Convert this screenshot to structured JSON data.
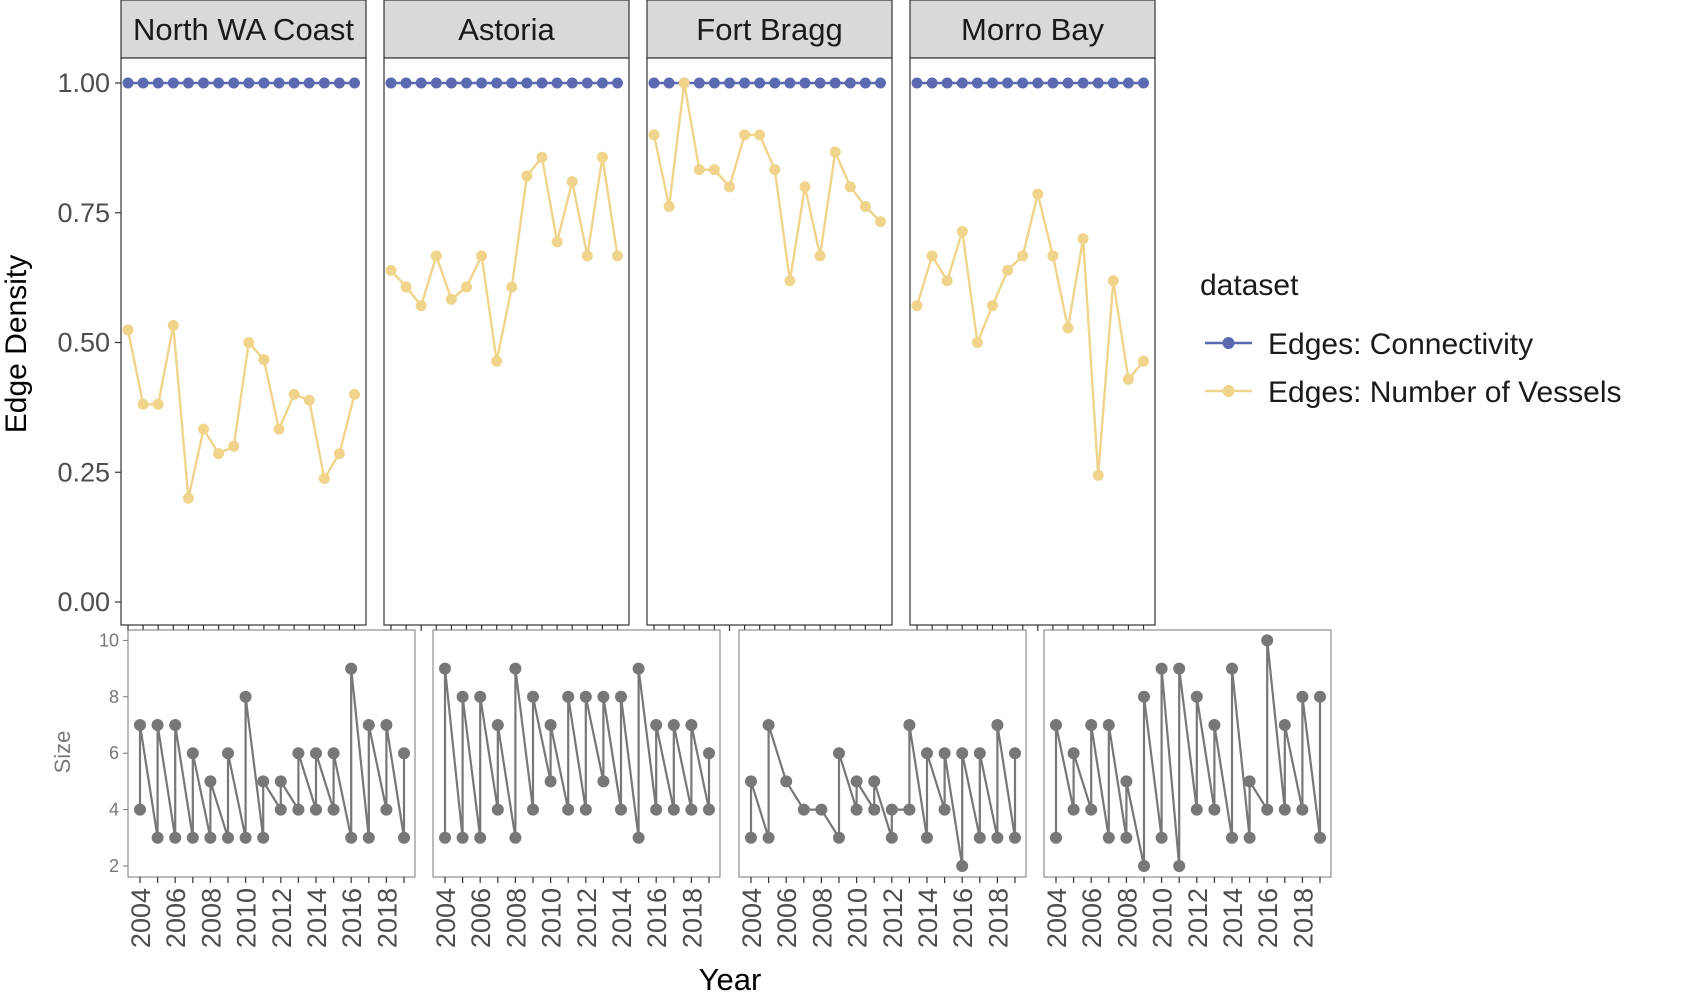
{
  "chart_data": [
    {
      "type": "line",
      "panel_group": "top",
      "ylabel": "Edge Density",
      "ylim": [
        0,
        1.0
      ],
      "yticks": [
        "0.00",
        "0.25",
        "0.50",
        "0.75",
        "1.00"
      ],
      "facets": [
        "North WA Coast",
        "Astoria",
        "Fort Bragg",
        "Morro Bay"
      ],
      "x": [
        2004,
        2005,
        2006,
        2007,
        2008,
        2009,
        2010,
        2011,
        2012,
        2013,
        2014,
        2015,
        2016,
        2017,
        2018,
        2019
      ],
      "legend": {
        "title": "dataset",
        "position": "right",
        "entries": [
          "Edges: Connectivity",
          "Edges: Number of Vessels"
        ]
      },
      "grid": false,
      "series": [
        {
          "name": "Edges: Connectivity",
          "color": "#5b69b0",
          "values": {
            "North WA Coast": [
              1,
              1,
              1,
              1,
              1,
              1,
              1,
              1,
              1,
              1,
              1,
              1,
              1,
              1,
              1,
              1
            ],
            "Astoria": [
              1,
              1,
              1,
              1,
              1,
              1,
              1,
              1,
              1,
              1,
              1,
              1,
              1,
              1,
              1,
              1
            ],
            "Fort Bragg": [
              1,
              1,
              1,
              1,
              1,
              1,
              1,
              1,
              1,
              1,
              1,
              1,
              1,
              1,
              1,
              1
            ],
            "Morro Bay": [
              1,
              1,
              1,
              1,
              1,
              1,
              1,
              1,
              1,
              1,
              1,
              1,
              1,
              1,
              1,
              1
            ]
          }
        },
        {
          "name": "Edges: Number of Vessels",
          "color": "#f1d48b",
          "values": {
            "North WA Coast": [
              0.524,
              0.381,
              0.381,
              0.533,
              0.2,
              0.333,
              0.286,
              0.3,
              0.5,
              0.467,
              0.333,
              0.4,
              0.389,
              0.238,
              0.286,
              0.4
            ],
            "Astoria": [
              0.639,
              0.607,
              0.571,
              0.667,
              0.583,
              0.607,
              0.667,
              0.464,
              0.607,
              0.821,
              0.857,
              0.694,
              0.81,
              0.667,
              0.857,
              0.667
            ],
            "Fort Bragg": [
              0.9,
              0.762,
              1.0,
              0.833,
              0.833,
              0.8,
              0.9,
              0.9,
              0.833,
              0.619,
              0.8,
              0.667,
              0.867,
              0.8,
              0.762,
              0.733
            ],
            "Morro Bay": [
              0.571,
              0.667,
              0.619,
              0.714,
              0.5,
              0.571,
              0.639,
              0.667,
              0.786,
              0.667,
              0.528,
              0.7,
              0.244,
              0.619,
              0.429,
              0.464
            ]
          }
        }
      ]
    },
    {
      "type": "line",
      "panel_group": "bottom",
      "ylabel": "Size",
      "xlabel": "Year",
      "ylim": [
        2,
        10
      ],
      "yticks": [
        "2",
        "4",
        "6",
        "8",
        "10"
      ],
      "xticks": [
        "2004",
        "2006",
        "2008",
        "2010",
        "2012",
        "2014",
        "2016",
        "2018"
      ],
      "color": "#777777",
      "grid": false,
      "panels": [
        {
          "facet": "North WA Coast",
          "points": [
            [
              2004,
              4
            ],
            [
              2004,
              7
            ],
            [
              2005,
              3
            ],
            [
              2005,
              7
            ],
            [
              2006,
              3
            ],
            [
              2006,
              7
            ],
            [
              2007,
              3
            ],
            [
              2007,
              6
            ],
            [
              2008,
              3
            ],
            [
              2008,
              5
            ],
            [
              2009,
              3
            ],
            [
              2009,
              6
            ],
            [
              2010,
              3
            ],
            [
              2010,
              8
            ],
            [
              2011,
              3
            ],
            [
              2011,
              5
            ],
            [
              2012,
              4
            ],
            [
              2012,
              5
            ],
            [
              2013,
              4
            ],
            [
              2013,
              6
            ],
            [
              2014,
              4
            ],
            [
              2014,
              6
            ],
            [
              2015,
              4
            ],
            [
              2015,
              6
            ],
            [
              2016,
              3
            ],
            [
              2016,
              9
            ],
            [
              2017,
              3
            ],
            [
              2017,
              7
            ],
            [
              2018,
              4
            ],
            [
              2018,
              7
            ],
            [
              2019,
              3
            ],
            [
              2019,
              6
            ]
          ]
        },
        {
          "facet": "Astoria",
          "points": [
            [
              2004,
              3
            ],
            [
              2004,
              9
            ],
            [
              2005,
              3
            ],
            [
              2005,
              8
            ],
            [
              2006,
              3
            ],
            [
              2006,
              8
            ],
            [
              2007,
              4
            ],
            [
              2007,
              7
            ],
            [
              2008,
              3
            ],
            [
              2008,
              9
            ],
            [
              2009,
              4
            ],
            [
              2009,
              8
            ],
            [
              2010,
              5
            ],
            [
              2010,
              7
            ],
            [
              2011,
              4
            ],
            [
              2011,
              8
            ],
            [
              2012,
              4
            ],
            [
              2012,
              8
            ],
            [
              2013,
              5
            ],
            [
              2013,
              8
            ],
            [
              2014,
              4
            ],
            [
              2014,
              8
            ],
            [
              2015,
              3
            ],
            [
              2015,
              9
            ],
            [
              2016,
              4
            ],
            [
              2016,
              7
            ],
            [
              2017,
              4
            ],
            [
              2017,
              7
            ],
            [
              2018,
              4
            ],
            [
              2018,
              7
            ],
            [
              2019,
              4
            ],
            [
              2019,
              6
            ]
          ]
        },
        {
          "facet": "Fort Bragg",
          "points": [
            [
              2004,
              3
            ],
            [
              2004,
              5
            ],
            [
              2005,
              3
            ],
            [
              2005,
              7
            ],
            [
              2006,
              5
            ],
            [
              2007,
              4
            ],
            [
              2008,
              4
            ],
            [
              2009,
              3
            ],
            [
              2009,
              6
            ],
            [
              2010,
              4
            ],
            [
              2010,
              5
            ],
            [
              2011,
              4
            ],
            [
              2011,
              5
            ],
            [
              2012,
              3
            ],
            [
              2012,
              4
            ],
            [
              2013,
              4
            ],
            [
              2013,
              7
            ],
            [
              2014,
              3
            ],
            [
              2014,
              6
            ],
            [
              2015,
              4
            ],
            [
              2015,
              6
            ],
            [
              2016,
              2
            ],
            [
              2016,
              6
            ],
            [
              2017,
              3
            ],
            [
              2017,
              6
            ],
            [
              2018,
              3
            ],
            [
              2018,
              7
            ],
            [
              2019,
              3
            ],
            [
              2019,
              6
            ]
          ]
        },
        {
          "facet": "Morro Bay",
          "points": [
            [
              2004,
              3
            ],
            [
              2004,
              7
            ],
            [
              2005,
              4
            ],
            [
              2005,
              6
            ],
            [
              2006,
              4
            ],
            [
              2006,
              7
            ],
            [
              2007,
              3
            ],
            [
              2007,
              7
            ],
            [
              2008,
              3
            ],
            [
              2008,
              5
            ],
            [
              2009,
              2
            ],
            [
              2009,
              8
            ],
            [
              2010,
              3
            ],
            [
              2010,
              9
            ],
            [
              2011,
              2
            ],
            [
              2011,
              9
            ],
            [
              2012,
              4
            ],
            [
              2012,
              8
            ],
            [
              2013,
              4
            ],
            [
              2013,
              7
            ],
            [
              2014,
              3
            ],
            [
              2014,
              9
            ],
            [
              2015,
              3
            ],
            [
              2015,
              5
            ],
            [
              2016,
              4
            ],
            [
              2016,
              10
            ],
            [
              2017,
              4
            ],
            [
              2017,
              7
            ],
            [
              2018,
              4
            ],
            [
              2018,
              8
            ],
            [
              2019,
              3
            ],
            [
              2019,
              8
            ]
          ]
        }
      ]
    }
  ]
}
